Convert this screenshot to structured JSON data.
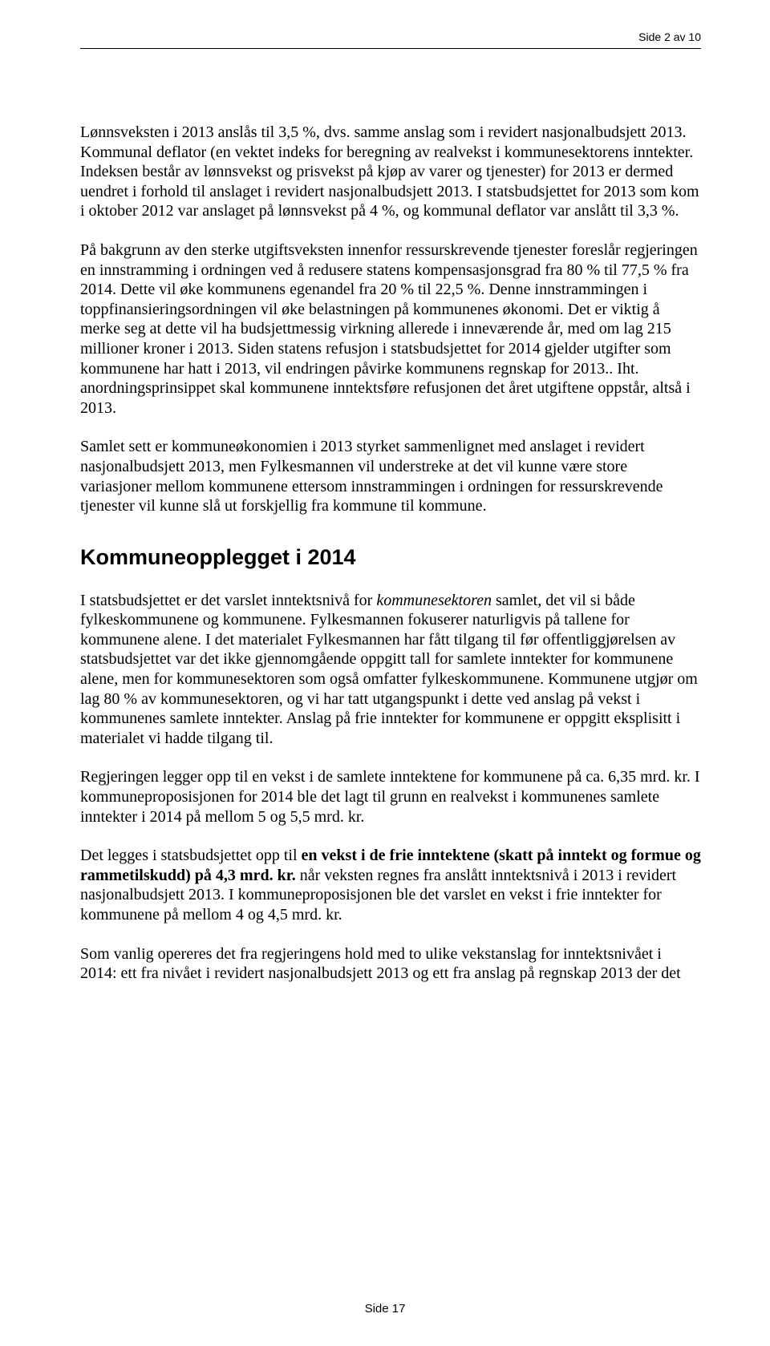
{
  "header": {
    "page_label": "Side 2 av 10"
  },
  "paragraphs": {
    "p1_a": "Lønnsveksten i 2013 anslås til 3,5 %, dvs. samme anslag som i revidert nasjonalbudsjett 2013. Kommunal deflator (en vektet indeks for beregning av realvekst i kommunesektorens inntekter. Indeksen består av lønnsvekst og prisvekst på kjøp av varer og tjenester)  for 2013 er dermed uendret i forhold til anslaget i revidert  nasjonalbudsjett 2013. I statsbudsjettet for 2013 som kom i oktober 2012 var anslaget på lønnsvekst på 4 %, og kommunal deflator  var anslått til 3,3 %.",
    "p2_a": "På bakgrunn av den sterke utgiftsveksten innenfor ressurskrevende tjenester foreslår regjeringen en innstramming i ordningen ved å redusere statens kompensasjonsgrad fra 80 % til 77,5 % fra 2014. Dette vil øke kommunens egenandel fra 20 % til 22,5 %. Denne innstrammingen i toppfinansieringsordningen vil øke belastningen på kommunenes økonomi. Det er viktig å merke seg at dette vil ha budsjettmessig virkning allerede i inneværende år, med om lag 215 millioner kroner i 2013. Siden statens refusjon i statsbudsjettet for 2014 gjelder utgifter som kommunene har hatt i 2013, vil endringen påvirke kommunens regnskap for 2013.. Iht. anordningsprinsippet skal kommunene inntektsføre refusjonen det året utgiftene oppstår, altså i 2013.",
    "p3_a": "Samlet sett er kommuneøkonomien i 2013 styrket sammenlignet med anslaget i revidert nasjonalbudsjett 2013, men Fylkesmannen vil understreke at det vil kunne være store variasjoner mellom kommunene ettersom innstrammingen i ordningen for ressurskrevende tjenester vil kunne slå ut forskjellig fra kommune til kommune.",
    "h2": "Kommuneopplegget i 2014",
    "p4_pre": "I statsbudsjettet er det varslet inntektsnivå for ",
    "p4_italic": "kommunesektoren",
    "p4_post": " samlet, det vil si både fylkeskommunene og kommunene. Fylkesmannen fokuserer naturligvis på tallene for kommunene alene. I det materialet Fylkesmannen har fått tilgang til før offentliggjørelsen av statsbudsjettet var det ikke gjennomgående oppgitt tall for samlete inntekter for kommunene alene, men for kommunesektoren som også omfatter fylkeskommunene. Kommunene utgjør om lag 80 % av kommunesektoren, og vi har tatt utgangspunkt i dette ved anslag på vekst i kommunenes samlete inntekter. Anslag på frie inntekter for kommunene er oppgitt eksplisitt i materialet vi hadde tilgang til.",
    "p5_a": "Regjeringen legger opp til en vekst i de samlete inntektene for kommunene på ca. 6,35 mrd. kr. I kommuneproposisjonen for 2014 ble det lagt til grunn en realvekst i kommunenes samlete inntekter i 2014 på mellom 5 og 5,5 mrd. kr.",
    "p6_pre": "Det legges i statsbudsjettet opp til ",
    "p6_bold": "en vekst i de frie inntektene (skatt på inntekt og formue og rammetilskudd) på 4,3 mrd. kr.",
    "p6_post": " når veksten regnes fra anslått inntektsnivå i 2013 i revidert nasjonalbudsjett 2013. I kommuneproposisjonen ble det varslet en vekst i frie inntekter for kommunene på mellom 4 og 4,5 mrd. kr.",
    "p7_a": "Som vanlig opereres det fra regjeringens hold med to ulike vekstanslag for inntektsnivået i 2014: ett fra nivået i revidert nasjonalbudsjett 2013 og ett fra anslag på regnskap 2013 der det"
  },
  "footer": {
    "page_number": "Side 17"
  }
}
